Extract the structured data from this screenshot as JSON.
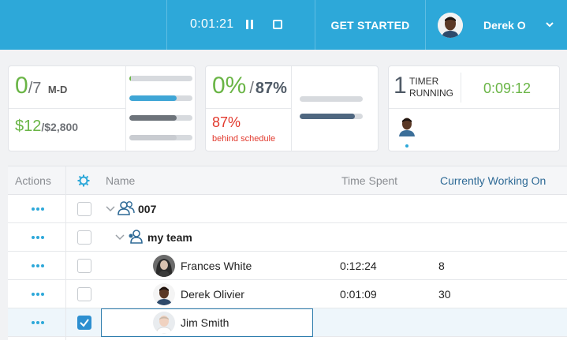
{
  "topbar": {
    "timer": "0:01:21",
    "get_started": "GET STARTED",
    "user_name": "Derek O"
  },
  "summary": {
    "md_value": "0",
    "md_total": "/7",
    "md_unit": "M-D",
    "cost_value": "$12",
    "cost_total": "/$2,800",
    "bars_left": [
      {
        "fill": 0.01,
        "color": "#6ab546"
      },
      {
        "fill": 0.75,
        "color": "#3fa6d6"
      },
      {
        "fill": 0.75,
        "color": "#6d737a"
      },
      {
        "fill": 0.75,
        "color": "#c9ccd1"
      }
    ],
    "progress_value": "0%",
    "progress_sep": "/",
    "progress_target": "87%",
    "behind_value": "87%",
    "behind_label": "behind schedule",
    "bars_middle": [
      {
        "fill": 0.0,
        "color": "#d7dade"
      },
      {
        "fill": 0.87,
        "color": "#4f6780"
      }
    ],
    "timers_count": "1",
    "timers_label_1": "TIMER",
    "timers_label_2": "RUNNING",
    "timers_time": "0:09:12"
  },
  "table": {
    "headers": {
      "actions": "Actions",
      "name": "Name",
      "time_spent": "Time Spent",
      "working_on": "Currently Working On"
    },
    "rows": [
      {
        "name": "007",
        "time": "",
        "working": ""
      },
      {
        "name": "my team",
        "time": "",
        "working": ""
      },
      {
        "name": "Frances White",
        "time": "0:12:24",
        "working": "8"
      },
      {
        "name": "Derek Olivier",
        "time": "0:01:09",
        "working": "30"
      },
      {
        "name": "Jim Smith",
        "time": "",
        "working": ""
      }
    ]
  }
}
